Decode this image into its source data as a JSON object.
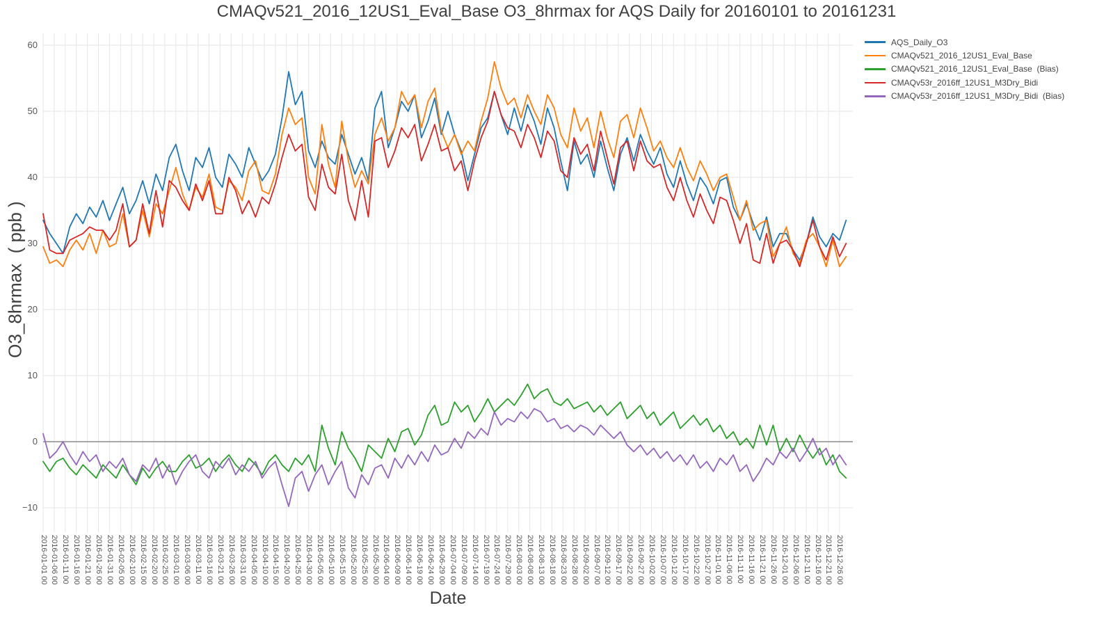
{
  "chart_data": {
    "type": "line",
    "title": "CMAQv521_2016_12US1_Eval_Base O3_8hrmax for AQS Daily for 20160101 to 20161231",
    "xlabel": "Date",
    "ylabel": "O3_8hrmax  ( ppb )",
    "legend_position": "top-right",
    "grid": true,
    "background": "#ffffff",
    "grid_color": "#e6e6e6",
    "zero_line_color": "#8c8c8c",
    "title_color": "#3f3f3f",
    "tick_color": "#555555",
    "ylim": [
      -13.7,
      61.8
    ],
    "y_ticks": [
      60,
      50,
      40,
      30,
      20,
      10,
      0,
      -10
    ],
    "x_tick_labels": [
      "2016-01-01 00",
      "2016-01-06 00",
      "2016-01-11 00",
      "2016-01-16 00",
      "2016-01-21 00",
      "2016-01-26 00",
      "2016-01-31 00",
      "2016-02-05 00",
      "2016-02-10 00",
      "2016-02-15 00",
      "2016-02-20 00",
      "2016-02-25 00",
      "2016-03-01 00",
      "2016-03-06 00",
      "2016-03-11 00",
      "2016-03-16 00",
      "2016-03-21 00",
      "2016-03-26 00",
      "2016-03-31 00",
      "2016-04-05 00",
      "2016-04-10 00",
      "2016-04-15 00",
      "2016-04-20 00",
      "2016-04-25 00",
      "2016-04-30 00",
      "2016-05-05 00",
      "2016-05-10 00",
      "2016-05-15 00",
      "2016-05-20 00",
      "2016-05-25 00",
      "2016-05-30 00",
      "2016-06-04 00",
      "2016-06-09 00",
      "2016-06-14 00",
      "2016-06-19 00",
      "2016-06-24 00",
      "2016-06-29 00",
      "2016-07-04 00",
      "2016-07-09 00",
      "2016-07-14 00",
      "2016-07-19 00",
      "2016-07-24 00",
      "2016-07-29 00",
      "2016-08-03 00",
      "2016-08-08 00",
      "2016-08-13 00",
      "2016-08-18 00",
      "2016-08-23 00",
      "2016-08-28 00",
      "2016-09-02 00",
      "2016-09-07 00",
      "2016-09-12 00",
      "2016-09-17 00",
      "2016-09-22 00",
      "2016-09-27 00",
      "2016-10-02 00",
      "2016-10-07 00",
      "2016-10-12 00",
      "2016-10-17 00",
      "2016-10-22 00",
      "2016-10-27 00",
      "2016-11-01 00",
      "2016-11-06 00",
      "2016-11-11 00",
      "2016-11-16 00",
      "2016-11-21 00",
      "2016-11-26 00",
      "2016-12-01 00",
      "2016-12-06 00",
      "2016-12-11 00",
      "2016-12-16 00",
      "2016-12-21 00",
      "2016-12-26 00"
    ],
    "x": [
      "2016-01-01",
      "2016-01-04",
      "2016-01-07",
      "2016-01-10",
      "2016-01-13",
      "2016-01-16",
      "2016-01-19",
      "2016-01-22",
      "2016-01-25",
      "2016-01-28",
      "2016-01-31",
      "2016-02-03",
      "2016-02-06",
      "2016-02-09",
      "2016-02-12",
      "2016-02-15",
      "2016-02-18",
      "2016-02-21",
      "2016-02-24",
      "2016-02-27",
      "2016-03-01",
      "2016-03-04",
      "2016-03-07",
      "2016-03-10",
      "2016-03-13",
      "2016-03-16",
      "2016-03-19",
      "2016-03-22",
      "2016-03-25",
      "2016-03-28",
      "2016-03-31",
      "2016-04-03",
      "2016-04-06",
      "2016-04-09",
      "2016-04-12",
      "2016-04-15",
      "2016-04-18",
      "2016-04-21",
      "2016-04-24",
      "2016-04-27",
      "2016-04-30",
      "2016-05-03",
      "2016-05-06",
      "2016-05-09",
      "2016-05-12",
      "2016-05-15",
      "2016-05-18",
      "2016-05-21",
      "2016-05-24",
      "2016-05-27",
      "2016-05-30",
      "2016-06-02",
      "2016-06-05",
      "2016-06-08",
      "2016-06-11",
      "2016-06-14",
      "2016-06-17",
      "2016-06-20",
      "2016-06-23",
      "2016-06-26",
      "2016-06-29",
      "2016-07-02",
      "2016-07-05",
      "2016-07-08",
      "2016-07-11",
      "2016-07-14",
      "2016-07-17",
      "2016-07-20",
      "2016-07-23",
      "2016-07-26",
      "2016-07-29",
      "2016-08-01",
      "2016-08-04",
      "2016-08-07",
      "2016-08-10",
      "2016-08-13",
      "2016-08-16",
      "2016-08-19",
      "2016-08-22",
      "2016-08-25",
      "2016-08-28",
      "2016-08-31",
      "2016-09-03",
      "2016-09-06",
      "2016-09-09",
      "2016-09-12",
      "2016-09-15",
      "2016-09-18",
      "2016-09-21",
      "2016-09-24",
      "2016-09-27",
      "2016-09-30",
      "2016-10-03",
      "2016-10-06",
      "2016-10-09",
      "2016-10-12",
      "2016-10-15",
      "2016-10-18",
      "2016-10-21",
      "2016-10-24",
      "2016-10-27",
      "2016-10-30",
      "2016-11-02",
      "2016-11-05",
      "2016-11-08",
      "2016-11-11",
      "2016-11-14",
      "2016-11-17",
      "2016-11-20",
      "2016-11-23",
      "2016-11-26",
      "2016-11-29",
      "2016-12-02",
      "2016-12-05",
      "2016-12-08",
      "2016-12-11",
      "2016-12-14",
      "2016-12-17",
      "2016-12-20",
      "2016-12-23",
      "2016-12-26",
      "2016-12-29"
    ],
    "series": [
      {
        "name": "AQS_Daily_O3",
        "color": "#1f77b4",
        "values": [
          33.5,
          31.5,
          30,
          28.5,
          32.5,
          34.5,
          33,
          35.5,
          34,
          36.5,
          33.5,
          36,
          38.5,
          34.5,
          36.5,
          39.5,
          36,
          40.5,
          38,
          43,
          45,
          41,
          38,
          43,
          41.5,
          44.5,
          40,
          38.5,
          43.5,
          42,
          40,
          44.5,
          42,
          39.5,
          41,
          43.5,
          49,
          56,
          51,
          53,
          44,
          41.5,
          45.5,
          43,
          42,
          46.5,
          43.5,
          40.5,
          43,
          39.5,
          50.5,
          53,
          44.5,
          47.5,
          51.5,
          50,
          52.5,
          46,
          48.5,
          52,
          46.5,
          50,
          46.5,
          44,
          39.5,
          43.5,
          47.5,
          49,
          53,
          49.5,
          46.5,
          50.5,
          47,
          51,
          48.5,
          45,
          50.5,
          47.5,
          42.5,
          38,
          45.5,
          42,
          43.5,
          40,
          45.5,
          41.5,
          38,
          43.5,
          46,
          42.5,
          46.5,
          44,
          42,
          44.5,
          40.5,
          38.5,
          42.5,
          39,
          36.5,
          40,
          38.5,
          36,
          39.5,
          40,
          35.5,
          33.5,
          36,
          33,
          30.5,
          34,
          29.5,
          31.5,
          31.5,
          29,
          27.5,
          30,
          34,
          31,
          29.5,
          31.5,
          30.5,
          33.5
        ]
      },
      {
        "name": "CMAQv521_2016_12US1_Eval_Base",
        "color": "#ff7f0e",
        "values": [
          29.5,
          27,
          27.5,
          26.5,
          29,
          30.5,
          29,
          31.5,
          28.5,
          32,
          29.5,
          30,
          34.5,
          29.5,
          30.5,
          35,
          31,
          36,
          34.5,
          38,
          41.5,
          37.5,
          35,
          38.5,
          37,
          40.5,
          35.5,
          35,
          39.5,
          38.5,
          36.5,
          41,
          42.5,
          38,
          37.5,
          40.5,
          46.5,
          50.5,
          48,
          49,
          40,
          37.5,
          48,
          42,
          38.5,
          48.5,
          42.5,
          38.5,
          41,
          39,
          46.5,
          49,
          45.5,
          47.5,
          53,
          51,
          52.5,
          47.5,
          51.5,
          53.5,
          47,
          44.5,
          46.5,
          43.5,
          45.5,
          44,
          48.5,
          52,
          57.5,
          53.5,
          51,
          52,
          49,
          52.5,
          50,
          48,
          52.5,
          50.5,
          46.5,
          44.5,
          50.5,
          47,
          49,
          44.5,
          50,
          46,
          43,
          48.5,
          49.5,
          46,
          50.5,
          47.5,
          44,
          45.5,
          43,
          41.5,
          44.5,
          41.5,
          39.5,
          42.5,
          40.5,
          38,
          40,
          40.5,
          37,
          33.5,
          36.5,
          32,
          33,
          33.5,
          28,
          30,
          32.5,
          28.5,
          27,
          30.5,
          31.5,
          29.5,
          26.5,
          30.5,
          26.5,
          28
        ]
      },
      {
        "name": "CMAQv521_2016_12US1_Eval_Base  (Bias)",
        "color": "#2ca02c",
        "values": [
          -3,
          -4.5,
          -3,
          -2.5,
          -4,
          -5,
          -3.5,
          -4.5,
          -5.5,
          -3.5,
          -4.5,
          -5.5,
          -3.5,
          -5,
          -6.5,
          -4,
          -5.5,
          -4,
          -3,
          -4.5,
          -4.5,
          -3,
          -2,
          -4,
          -3.5,
          -2.5,
          -4.5,
          -3,
          -2,
          -3.5,
          -4.5,
          -2.5,
          -3.5,
          -5,
          -3,
          -2,
          -3.5,
          -4.5,
          -2.5,
          -3.5,
          -2,
          -4.5,
          2.5,
          -1,
          -3.5,
          1.5,
          -1,
          -2.5,
          -4.5,
          -0.5,
          -1.5,
          -2.5,
          0.5,
          -1.5,
          1.5,
          2,
          -0.5,
          1,
          4,
          5.5,
          2.5,
          3,
          6,
          4.5,
          5.5,
          3,
          4.5,
          6.5,
          4.5,
          5.5,
          6.5,
          5.5,
          7,
          8.7,
          6.5,
          7.5,
          8,
          6,
          5.5,
          6.5,
          5,
          5.5,
          6,
          4.5,
          5.5,
          4,
          5,
          6,
          3.5,
          4.5,
          5.5,
          3.5,
          4.5,
          2.5,
          3.5,
          4.5,
          2,
          3,
          4,
          2.5,
          3.5,
          1.5,
          2.5,
          0.5,
          1.5,
          -0.5,
          0.5,
          -1,
          2.5,
          -0.5,
          2.5,
          -1.5,
          0.5,
          -1.5,
          1,
          -1,
          -2.5,
          -1,
          -3.5,
          -2,
          -4.5,
          -5.5
        ]
      },
      {
        "name": "CMAQv53r_2016ff_12US1_M3Dry_Bidi",
        "color": "#d62728",
        "values": [
          34.5,
          29,
          28.5,
          28.5,
          30.5,
          31,
          31.5,
          32.5,
          32,
          32,
          30.5,
          32,
          36,
          29.5,
          30.5,
          36,
          31.5,
          38,
          32.5,
          39.5,
          38.5,
          36.5,
          35,
          39,
          36.5,
          39.5,
          34.5,
          34.5,
          40,
          38,
          34.5,
          36.5,
          34,
          37,
          36,
          39,
          43,
          46.5,
          44,
          45,
          37,
          35,
          42,
          38.5,
          37.5,
          43.5,
          36.5,
          33.5,
          39.5,
          34,
          45.5,
          46,
          41.5,
          44,
          47.5,
          46,
          48,
          42.5,
          45,
          48,
          44,
          44.5,
          41,
          42.5,
          38,
          42.5,
          46,
          48.5,
          53,
          49.5,
          47.5,
          47,
          44.5,
          48,
          46,
          43,
          47,
          45.5,
          41,
          40,
          46,
          43.5,
          45,
          41,
          47,
          43,
          39,
          44.5,
          45.5,
          41,
          45.5,
          42.5,
          41.5,
          42,
          38.5,
          36.5,
          40,
          36.5,
          34,
          37.5,
          35,
          33,
          37,
          36.5,
          33.5,
          30,
          33,
          27.5,
          27,
          31.5,
          27,
          30,
          30.5,
          29,
          26.5,
          30,
          33.5,
          29.5,
          27.5,
          31,
          28,
          30
        ]
      },
      {
        "name": "CMAQv53r_2016ff_12US1_M3Dry_Bidi  (Bias)",
        "color": "#9467bd",
        "values": [
          1.2,
          -2.5,
          -1.5,
          0,
          -2,
          -3.5,
          -1.5,
          -3,
          -2,
          -4.5,
          -3,
          -4,
          -2.5,
          -5,
          -6,
          -3.5,
          -4.5,
          -2.5,
          -5.5,
          -3.5,
          -6.5,
          -4.5,
          -3,
          -2,
          -4.5,
          -5.5,
          -3,
          -4,
          -2.5,
          -5,
          -3.5,
          -4.5,
          -3,
          -5.5,
          -4,
          -3,
          -6.5,
          -9.8,
          -5.5,
          -4.5,
          -7.5,
          -5,
          -3.5,
          -6.5,
          -4.5,
          -3,
          -7,
          -8.5,
          -5,
          -6.5,
          -4,
          -3.5,
          -5.5,
          -2.5,
          -4,
          -2,
          -3.5,
          -1.5,
          -3,
          -0.5,
          -2,
          -1.5,
          0.5,
          -1,
          1.5,
          0.5,
          2,
          1,
          4.5,
          2.5,
          3.5,
          3,
          4.5,
          3.5,
          5,
          4.5,
          3,
          3.5,
          2,
          2.5,
          1.5,
          2.5,
          2,
          1,
          2.5,
          1.5,
          0.5,
          1.5,
          -0.5,
          -1.5,
          -0.5,
          -2,
          -1,
          -2.5,
          -1.5,
          -3,
          -2,
          -3.5,
          -2,
          -4,
          -3,
          -4.5,
          -2.5,
          -3.5,
          -2,
          -4.5,
          -3.5,
          -6,
          -4.5,
          -2.5,
          -3.5,
          -1.5,
          -2.5,
          -1,
          -3,
          -1.5,
          0.5,
          -2,
          -1,
          -3.5,
          -2,
          -3.5
        ]
      }
    ]
  }
}
